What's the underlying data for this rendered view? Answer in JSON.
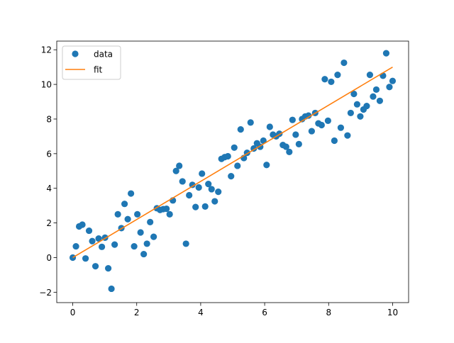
{
  "chart_data": {
    "type": "scatter",
    "title": "",
    "xlabel": "",
    "ylabel": "",
    "xlim": [
      -0.5,
      10.5
    ],
    "ylim": [
      -2.6,
      12.5
    ],
    "x_ticks": [
      0,
      2,
      4,
      6,
      8,
      10
    ],
    "x_tick_labels": [
      "0",
      "2",
      "4",
      "6",
      "8",
      "10"
    ],
    "y_ticks": [
      -2,
      0,
      2,
      4,
      6,
      8,
      10,
      12
    ],
    "y_tick_labels": [
      "−2",
      "0",
      "2",
      "4",
      "6",
      "8",
      "10",
      "12"
    ],
    "grid": false,
    "legend": {
      "placement": "upper-left",
      "entries": [
        {
          "label": "data",
          "marker": "circle",
          "color": "#1f77b4"
        },
        {
          "label": "fit",
          "marker": "line",
          "color": "#ff7f0e"
        }
      ]
    },
    "series": [
      {
        "name": "data",
        "kind": "scatter",
        "color": "#1f77b4",
        "x": [
          0.0,
          0.1,
          0.2,
          0.3,
          0.4,
          0.51,
          0.61,
          0.71,
          0.81,
          0.91,
          1.01,
          1.11,
          1.21,
          1.31,
          1.41,
          1.52,
          1.62,
          1.72,
          1.82,
          1.92,
          2.02,
          2.12,
          2.22,
          2.32,
          2.42,
          2.53,
          2.63,
          2.73,
          2.83,
          2.93,
          3.03,
          3.13,
          3.23,
          3.33,
          3.43,
          3.54,
          3.64,
          3.74,
          3.84,
          3.94,
          4.04,
          4.14,
          4.24,
          4.34,
          4.44,
          4.55,
          4.65,
          4.75,
          4.85,
          4.95,
          5.05,
          5.15,
          5.25,
          5.35,
          5.45,
          5.56,
          5.66,
          5.76,
          5.86,
          5.96,
          6.06,
          6.16,
          6.26,
          6.36,
          6.46,
          6.57,
          6.67,
          6.77,
          6.87,
          6.97,
          7.07,
          7.17,
          7.27,
          7.37,
          7.47,
          7.58,
          7.68,
          7.78,
          7.88,
          7.98,
          8.08,
          8.18,
          8.28,
          8.38,
          8.48,
          8.59,
          8.69,
          8.79,
          8.89,
          8.99,
          9.09,
          9.19,
          9.29,
          9.39,
          9.49,
          9.6,
          9.7,
          9.8,
          9.9,
          10.0
        ],
        "y": [
          0.0,
          0.65,
          1.8,
          1.9,
          -0.05,
          1.55,
          0.95,
          -0.5,
          1.1,
          0.62,
          1.15,
          -0.62,
          -1.8,
          0.75,
          2.5,
          1.7,
          3.1,
          2.22,
          3.7,
          0.65,
          2.5,
          1.45,
          0.2,
          0.8,
          2.05,
          1.2,
          2.85,
          2.75,
          2.8,
          2.82,
          2.5,
          3.3,
          5.0,
          5.3,
          4.4,
          0.8,
          3.6,
          4.2,
          2.92,
          4.05,
          4.85,
          2.95,
          4.25,
          3.95,
          3.25,
          3.8,
          5.7,
          5.8,
          5.85,
          4.7,
          6.35,
          5.3,
          7.4,
          5.75,
          6.05,
          7.8,
          6.3,
          6.6,
          6.4,
          6.75,
          5.35,
          7.55,
          7.1,
          7.0,
          7.15,
          6.5,
          6.4,
          6.1,
          7.95,
          7.1,
          6.55,
          8.0,
          8.15,
          8.2,
          7.3,
          8.35,
          7.75,
          7.65,
          10.3,
          7.9,
          10.15,
          6.75,
          10.55,
          7.5,
          11.25,
          7.05,
          8.35,
          9.45,
          8.85,
          8.15,
          8.55,
          8.75,
          10.55,
          9.3,
          9.7,
          9.05,
          10.5,
          11.8,
          9.85,
          10.2
        ]
      },
      {
        "name": "fit",
        "kind": "line",
        "color": "#ff7f0e",
        "x": [
          0,
          10
        ],
        "y": [
          0.0,
          11.0
        ]
      }
    ]
  }
}
